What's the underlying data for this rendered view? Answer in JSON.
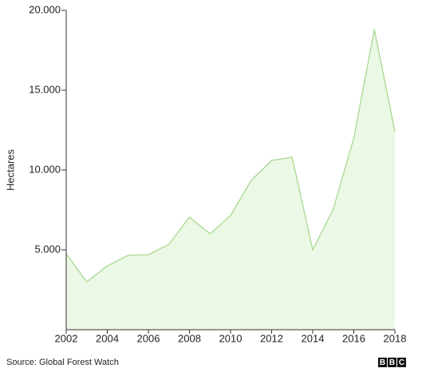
{
  "chart_data": {
    "type": "area",
    "y_label": "Hectares",
    "source": "Source: Global Forest Watch",
    "logo": [
      "B",
      "B",
      "C"
    ],
    "x": [
      2002,
      2003,
      2004,
      2005,
      2006,
      2007,
      2008,
      2009,
      2010,
      2011,
      2012,
      2013,
      2014,
      2015,
      2016,
      2017,
      2018
    ],
    "values": [
      4750,
      3000,
      4000,
      4650,
      4700,
      5350,
      7050,
      6000,
      7150,
      9350,
      10600,
      10800,
      5000,
      7550,
      12000,
      18800,
      12400
    ],
    "color": "#a6d98f",
    "fill": "#ecf8e6",
    "xlim": [
      2002,
      2018
    ],
    "xticks": [
      2002,
      2004,
      2006,
      2008,
      2010,
      2012,
      2014,
      2016,
      2018
    ],
    "ylim": [
      0,
      20000
    ],
    "yticks": [
      {
        "value": 5000,
        "label": "5.000"
      },
      {
        "value": 10000,
        "label": "10.000"
      },
      {
        "value": 15000,
        "label": "15.000"
      },
      {
        "value": 20000,
        "label": "20.000"
      }
    ]
  }
}
